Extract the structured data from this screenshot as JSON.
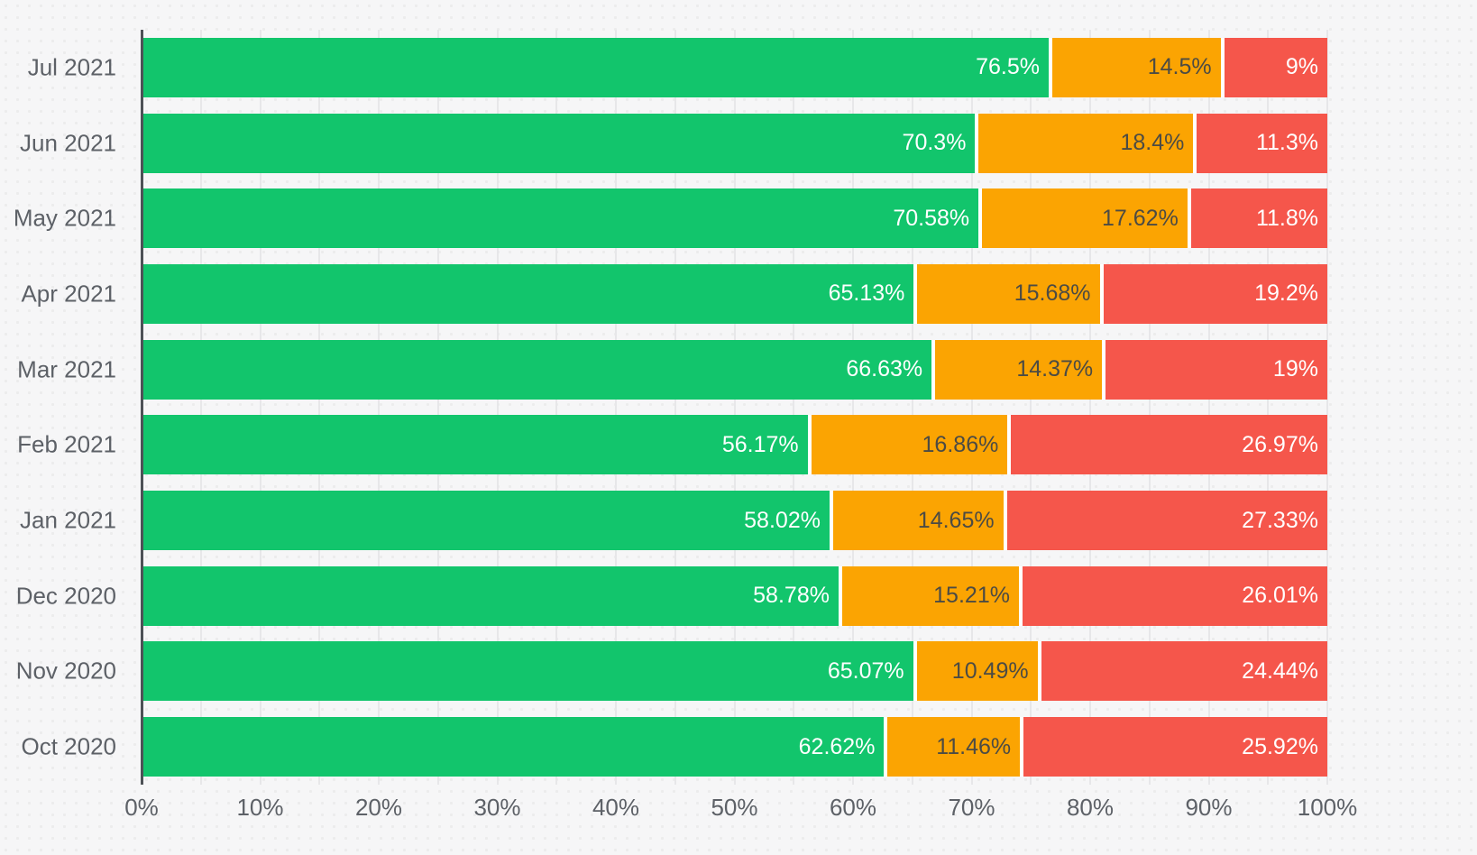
{
  "colors": {
    "background": "#F6F6F7",
    "gridline": "#E7E7E9",
    "axis_line": "#4D5156",
    "tick_label_color": "#5D6167",
    "category_label_color": "#5D6167",
    "segment_separator": "#FFFFFF"
  },
  "chart_data": {
    "type": "bar",
    "variant": "horizontal-stacked",
    "title": "",
    "xlabel": "",
    "ylabel": "",
    "legend": "none",
    "grid": true,
    "categories": [
      "Jul 2021",
      "Jun 2021",
      "May 2021",
      "Apr 2021",
      "Mar 2021",
      "Feb 2021",
      "Jan 2021",
      "Dec 2020",
      "Nov 2020",
      "Oct 2020"
    ],
    "series": [
      {
        "name": "green",
        "color": "#12C56C",
        "label_color": "#FFFFFF",
        "values": [
          76.5,
          70.3,
          70.58,
          65.13,
          66.63,
          56.17,
          58.02,
          58.78,
          65.07,
          62.62
        ],
        "labels": [
          "76.5%",
          "70.3%",
          "70.58%",
          "65.13%",
          "66.63%",
          "56.17%",
          "58.02%",
          "58.78%",
          "65.07%",
          "62.62%"
        ]
      },
      {
        "name": "orange",
        "color": "#FBA402",
        "label_color": "#4C4B44",
        "values": [
          14.5,
          18.4,
          17.62,
          15.68,
          14.37,
          16.86,
          14.65,
          15.21,
          10.49,
          11.46
        ],
        "labels": [
          "14.5%",
          "18.4%",
          "17.62%",
          "15.68%",
          "14.37%",
          "16.86%",
          "14.65%",
          "15.21%",
          "10.49%",
          "11.46%"
        ]
      },
      {
        "name": "red",
        "color": "#F5564B",
        "label_color": "#FFFFFF",
        "values": [
          9,
          11.3,
          11.8,
          19.2,
          19,
          26.97,
          27.33,
          26.01,
          24.44,
          25.92
        ],
        "labels": [
          "9%",
          "11.3%",
          "11.8%",
          "19.2%",
          "19%",
          "26.97%",
          "27.33%",
          "26.01%",
          "24.44%",
          "25.92%"
        ]
      }
    ],
    "x_axis": {
      "min": 0,
      "max": 100,
      "tick_labels": [
        "0%",
        "10%",
        "20%",
        "30%",
        "40%",
        "50%",
        "60%",
        "70%",
        "80%",
        "90%",
        "100%"
      ],
      "major_tick_step": 10,
      "minor_grid_step": 5
    }
  }
}
